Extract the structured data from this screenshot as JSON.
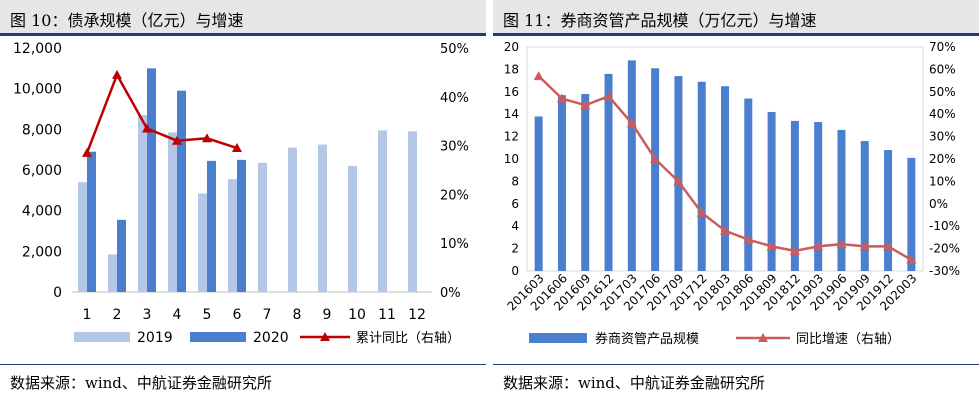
{
  "left": {
    "title": "图 10：债承规模（亿元）与增速",
    "source": "数据来源：wind、中航证券金融研究所",
    "colors": {
      "s2019": "#b4c7e7",
      "s2020": "#4a7fcf",
      "line": "#c00000"
    }
  },
  "right": {
    "title": "图 11：券商资管产品规模（万亿元）与增速",
    "source": "数据来源：wind、中航证券金融研究所",
    "colors": {
      "bar": "#4a7fcf",
      "line": "#cd5b5b"
    }
  },
  "chart_data": [
    {
      "type": "bar",
      "title": "债承规模（亿元）与增速",
      "categories": [
        "1",
        "2",
        "3",
        "4",
        "5",
        "6",
        "7",
        "8",
        "9",
        "10",
        "11",
        "12"
      ],
      "ylim": [
        0,
        12000
      ],
      "yticks": [
        "0",
        "2,000",
        "4,000",
        "6,000",
        "8,000",
        "10,000",
        "12,000"
      ],
      "y2lim": [
        0,
        50
      ],
      "y2ticks": [
        "0%",
        "10%",
        "20%",
        "30%",
        "40%",
        "50%"
      ],
      "series": [
        {
          "name": "2019",
          "type": "bar",
          "values": [
            5400,
            1850,
            8700,
            7850,
            4850,
            5550,
            6350,
            7100,
            7250,
            6200,
            7950,
            7900
          ]
        },
        {
          "name": "2020",
          "type": "bar",
          "values": [
            6900,
            3550,
            11000,
            9900,
            6450,
            6500,
            null,
            null,
            null,
            null,
            null,
            null
          ]
        },
        {
          "name": "累计同比（右轴）",
          "type": "line",
          "axis": "right",
          "values": [
            28.5,
            44.5,
            33.5,
            31.0,
            31.5,
            29.5,
            null,
            null,
            null,
            null,
            null,
            null
          ]
        }
      ]
    },
    {
      "type": "bar",
      "title": "券商资管产品规模（万亿元）与增速",
      "categories": [
        "201603",
        "201606",
        "201609",
        "201612",
        "201703",
        "201706",
        "201709",
        "201712",
        "201803",
        "201806",
        "201809",
        "201812",
        "201903",
        "201906",
        "201909",
        "201912",
        "202003"
      ],
      "ylim": [
        0,
        20
      ],
      "yticks": [
        "0",
        "2",
        "4",
        "6",
        "8",
        "10",
        "12",
        "14",
        "16",
        "18",
        "20"
      ],
      "y2lim": [
        -30,
        70
      ],
      "y2ticks": [
        "-30%",
        "-20%",
        "-10%",
        "0%",
        "10%",
        "20%",
        "30%",
        "40%",
        "50%",
        "60%",
        "70%"
      ],
      "series": [
        {
          "name": "券商资管产品规模",
          "type": "bar",
          "values": [
            13.8,
            15.7,
            15.8,
            17.6,
            18.8,
            18.1,
            17.4,
            16.9,
            16.5,
            15.4,
            14.2,
            13.4,
            13.3,
            12.6,
            11.6,
            10.8,
            10.1
          ]
        },
        {
          "name": "同比增速（右轴）",
          "type": "line",
          "axis": "right",
          "values": [
            57,
            47,
            44,
            48,
            36,
            20,
            10,
            -4,
            -12,
            -16,
            -19,
            -21,
            -19,
            -18,
            -19,
            -19,
            -25
          ]
        }
      ]
    }
  ]
}
